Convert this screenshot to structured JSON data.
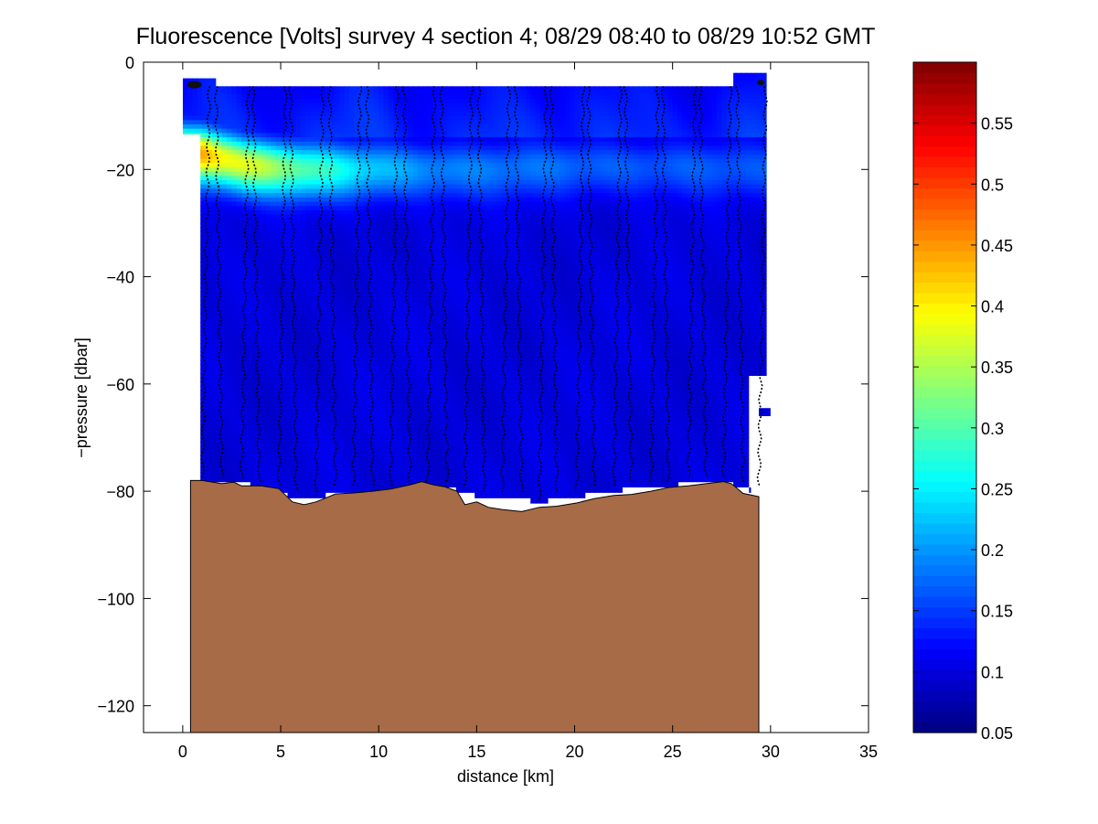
{
  "chart_data": {
    "type": "heatmap",
    "title": "Fluorescence [Volts] survey 4 section 4; 08/29 08:40 to 08/29 10:52 GMT",
    "xlabel": "distance [km]",
    "ylabel": "−pressure [dbar]",
    "xlim": [
      -2,
      35
    ],
    "ylim": [
      -125,
      0
    ],
    "xticks": [
      0,
      5,
      10,
      15,
      20,
      25,
      30,
      35
    ],
    "yticks": [
      -120,
      -100,
      -80,
      -60,
      -40,
      -20,
      0
    ],
    "grid": false,
    "colorbar": {
      "label": "",
      "range": [
        0.05,
        0.6
      ],
      "ticks": [
        0.05,
        0.1,
        0.15,
        0.2,
        0.25,
        0.3,
        0.35,
        0.4,
        0.45,
        0.5,
        0.55
      ],
      "tick_labels": [
        "0.05",
        "0.1",
        "0.15",
        "0.2",
        "0.25",
        "0.3",
        "0.35",
        "0.4",
        "0.45",
        "0.5",
        "0.55"
      ],
      "colormap": "jet"
    },
    "field": {
      "background_value": 0.1,
      "near_surface_value": 0.14,
      "chlorophyll_layer": {
        "depth_center_at_x": [
          [
            0.9,
            -17
          ],
          [
            3,
            -19
          ],
          [
            6,
            -20
          ],
          [
            10,
            -20
          ],
          [
            15,
            -20
          ],
          [
            20,
            -19.5
          ],
          [
            25,
            -19.5
          ],
          [
            30,
            -20
          ]
        ],
        "peak_value_at_x": [
          [
            0.9,
            0.45
          ],
          [
            2,
            0.4
          ],
          [
            4,
            0.36
          ],
          [
            6,
            0.3
          ],
          [
            9,
            0.24
          ],
          [
            12,
            0.2
          ],
          [
            16,
            0.18
          ],
          [
            22,
            0.17
          ],
          [
            30,
            0.16
          ]
        ]
      }
    },
    "data_mask_extent": {
      "x_range": [
        0.9,
        29.3
      ],
      "top_depth_dbar": -4.5,
      "shallow_start_x_range": [
        0,
        1.7
      ],
      "shallow_start_depth_dbar": [
        -3,
        -13.5
      ]
    },
    "profile_stations_km": [
      1.0,
      2.0,
      3.0,
      3.9,
      4.9,
      5.8,
      6.8,
      7.8,
      8.7,
      9.7,
      10.6,
      11.6,
      12.5,
      13.5,
      14.4,
      15.4,
      16.3,
      17.3,
      18.2,
      19.1,
      20.1,
      21.0,
      22.0,
      22.9,
      23.9,
      24.8,
      25.8,
      26.7,
      27.6,
      28.6,
      29.4
    ],
    "profile_bottom_depths_dbar": [
      -78,
      -78,
      -78,
      -79,
      -80,
      -81,
      -81,
      -80,
      -80,
      -80,
      -80,
      -79,
      -79,
      -79,
      -80,
      -81,
      -81,
      -81,
      -82,
      -81,
      -81,
      -80,
      -80,
      -79,
      -79,
      -79,
      -78,
      -78,
      -78,
      -79,
      -80
    ],
    "bathymetry": {
      "label": "seafloor",
      "color": "#a86b47",
      "x": [
        0.4,
        1.0,
        2.0,
        2.6,
        3.0,
        4.0,
        4.9,
        5.6,
        6.2,
        6.8,
        7.8,
        8.8,
        9.7,
        10.6,
        11.6,
        12.2,
        12.8,
        13.4,
        14.0,
        14.4,
        15.0,
        15.6,
        16.3,
        17.3,
        18.2,
        19.1,
        20.1,
        21.0,
        22.0,
        22.9,
        23.9,
        24.8,
        25.8,
        26.7,
        27.6,
        28.0,
        28.6,
        29.4
      ],
      "y": [
        -78,
        -78,
        -78.6,
        -78.3,
        -79,
        -79,
        -79.5,
        -82,
        -82.5,
        -82,
        -80.5,
        -80.3,
        -80,
        -79.6,
        -78.8,
        -78.2,
        -78.8,
        -79.2,
        -80,
        -82.5,
        -82,
        -83,
        -83.4,
        -83.8,
        -83,
        -82.8,
        -82.2,
        -81.4,
        -80.8,
        -80.6,
        -80,
        -79.3,
        -79,
        -78.6,
        -78.2,
        -78.6,
        -80.4,
        -81
      ]
    }
  }
}
